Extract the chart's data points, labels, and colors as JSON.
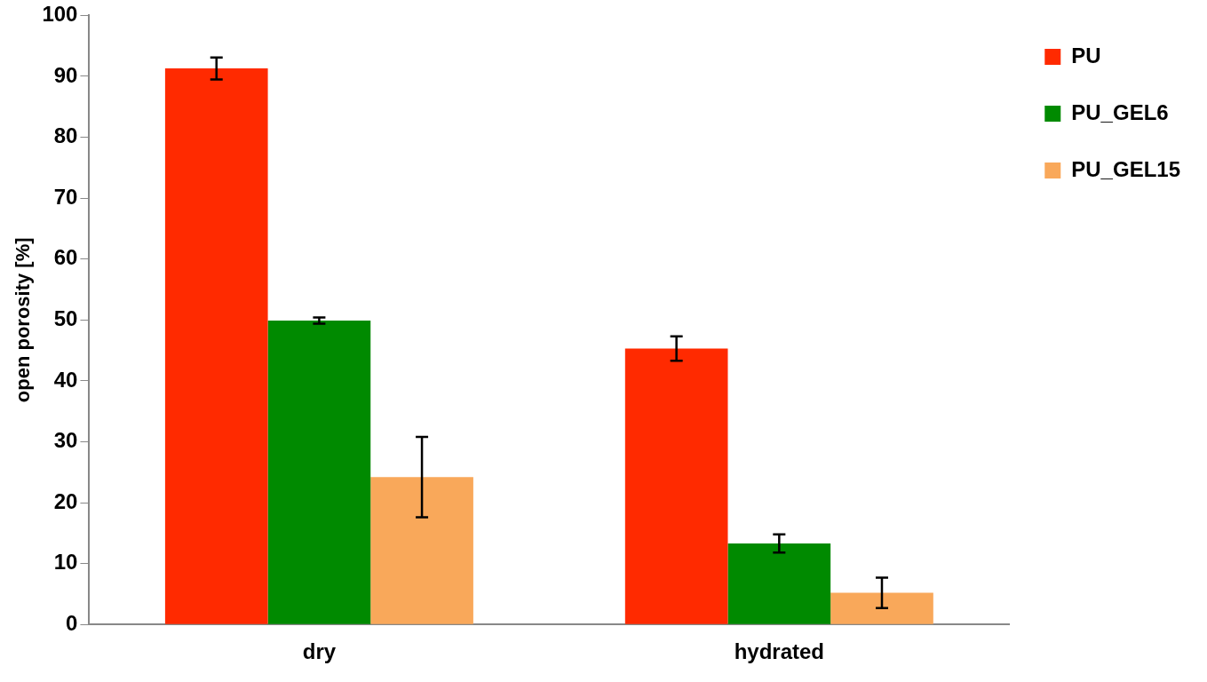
{
  "chart_data": {
    "type": "bar",
    "ylabel": "open porosity [%]",
    "categories": [
      "dry",
      "hydrated"
    ],
    "series": [
      {
        "name": "PU",
        "color": "#ff2a00",
        "values": [
          91.3,
          45.3
        ],
        "errors": [
          1.8,
          2
        ]
      },
      {
        "name": "PU_GEL6",
        "color": "#008a00",
        "values": [
          49.9,
          13.3
        ],
        "errors": [
          0.5,
          1.5
        ]
      },
      {
        "name": "PU_GEL15",
        "color": "#f9a85a",
        "values": [
          24.2,
          5.2
        ],
        "errors": [
          6.6,
          2.5
        ]
      }
    ],
    "ylim": [
      0,
      100
    ],
    "yticks": [
      0,
      10,
      20,
      30,
      40,
      50,
      60,
      70,
      80,
      90,
      100
    ],
    "grid": false,
    "legend": "top right"
  }
}
